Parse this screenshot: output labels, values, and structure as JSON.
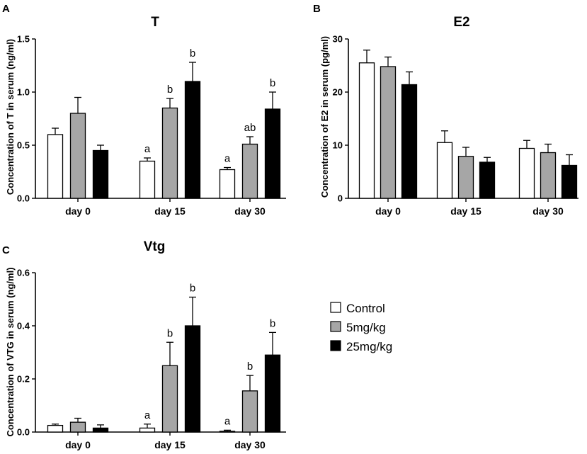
{
  "legend": {
    "items": [
      {
        "label": "Control",
        "color": "#ffffff"
      },
      {
        "label": "5mg/kg",
        "color": "#a6a6a6"
      },
      {
        "label": "25mg/kg",
        "color": "#000000"
      }
    ]
  },
  "chart_data": [
    {
      "panel": "A",
      "type": "bar",
      "title": "T",
      "ylabel": "Concentration of T in serum (ng/ml)",
      "xlabel": "",
      "ylim": [
        0,
        1.5
      ],
      "yticks": [
        0,
        0.5,
        1.0,
        1.5
      ],
      "ytick_labels": [
        "0.0",
        "0.5",
        "1.0",
        "1.5"
      ],
      "categories": [
        "day 0",
        "day 15",
        "day 30"
      ],
      "series": [
        {
          "name": "Control",
          "values": [
            0.6,
            0.35,
            0.27
          ],
          "errors": [
            0.06,
            0.03,
            0.02
          ],
          "annotations": [
            "",
            "a",
            "a"
          ]
        },
        {
          "name": "5mg/kg",
          "values": [
            0.8,
            0.85,
            0.51
          ],
          "errors": [
            0.15,
            0.09,
            0.07
          ],
          "annotations": [
            "",
            "b",
            "ab"
          ]
        },
        {
          "name": "25mg/kg",
          "values": [
            0.45,
            1.1,
            0.84
          ],
          "errors": [
            0.05,
            0.18,
            0.16
          ],
          "annotations": [
            "",
            "b",
            "b"
          ]
        }
      ]
    },
    {
      "panel": "B",
      "type": "bar",
      "title": "E2",
      "ylabel": "Concentration of E2 in serum  (pg/ml)",
      "xlabel": "",
      "ylim": [
        0,
        30
      ],
      "yticks": [
        0,
        10,
        20,
        30
      ],
      "ytick_labels": [
        "0",
        "10",
        "20",
        "30"
      ],
      "categories": [
        "day 0",
        "day 15",
        "day 30"
      ],
      "series": [
        {
          "name": "Control",
          "values": [
            25.5,
            10.5,
            9.4
          ],
          "errors": [
            2.4,
            2.2,
            1.5
          ],
          "annotations": [
            "",
            "",
            ""
          ]
        },
        {
          "name": "5mg/kg",
          "values": [
            24.8,
            7.9,
            8.6
          ],
          "errors": [
            1.8,
            1.7,
            1.6
          ],
          "annotations": [
            "",
            "",
            ""
          ]
        },
        {
          "name": "25mg/kg",
          "values": [
            21.4,
            6.8,
            6.2
          ],
          "errors": [
            2.4,
            0.9,
            2.0
          ],
          "annotations": [
            "",
            "",
            ""
          ]
        }
      ]
    },
    {
      "panel": "C",
      "type": "bar",
      "title": "Vtg",
      "ylabel": "Concentration of VTG in serum (ng/ml)",
      "xlabel": "",
      "ylim": [
        0,
        0.6
      ],
      "yticks": [
        0,
        0.2,
        0.4,
        0.6
      ],
      "ytick_labels": [
        "0.0",
        "0.2",
        "0.4",
        "0.6"
      ],
      "categories": [
        "day 0",
        "day 15",
        "day 30"
      ],
      "series": [
        {
          "name": "Control",
          "values": [
            0.025,
            0.015,
            0.003
          ],
          "errors": [
            0.005,
            0.015,
            0.004
          ],
          "annotations": [
            "",
            "a",
            "a"
          ]
        },
        {
          "name": "5mg/kg",
          "values": [
            0.037,
            0.25,
            0.155
          ],
          "errors": [
            0.015,
            0.088,
            0.058
          ],
          "annotations": [
            "",
            "b",
            "b"
          ]
        },
        {
          "name": "25mg/kg",
          "values": [
            0.015,
            0.4,
            0.29
          ],
          "errors": [
            0.012,
            0.108,
            0.085
          ],
          "annotations": [
            "",
            "b",
            "b"
          ]
        }
      ]
    }
  ]
}
